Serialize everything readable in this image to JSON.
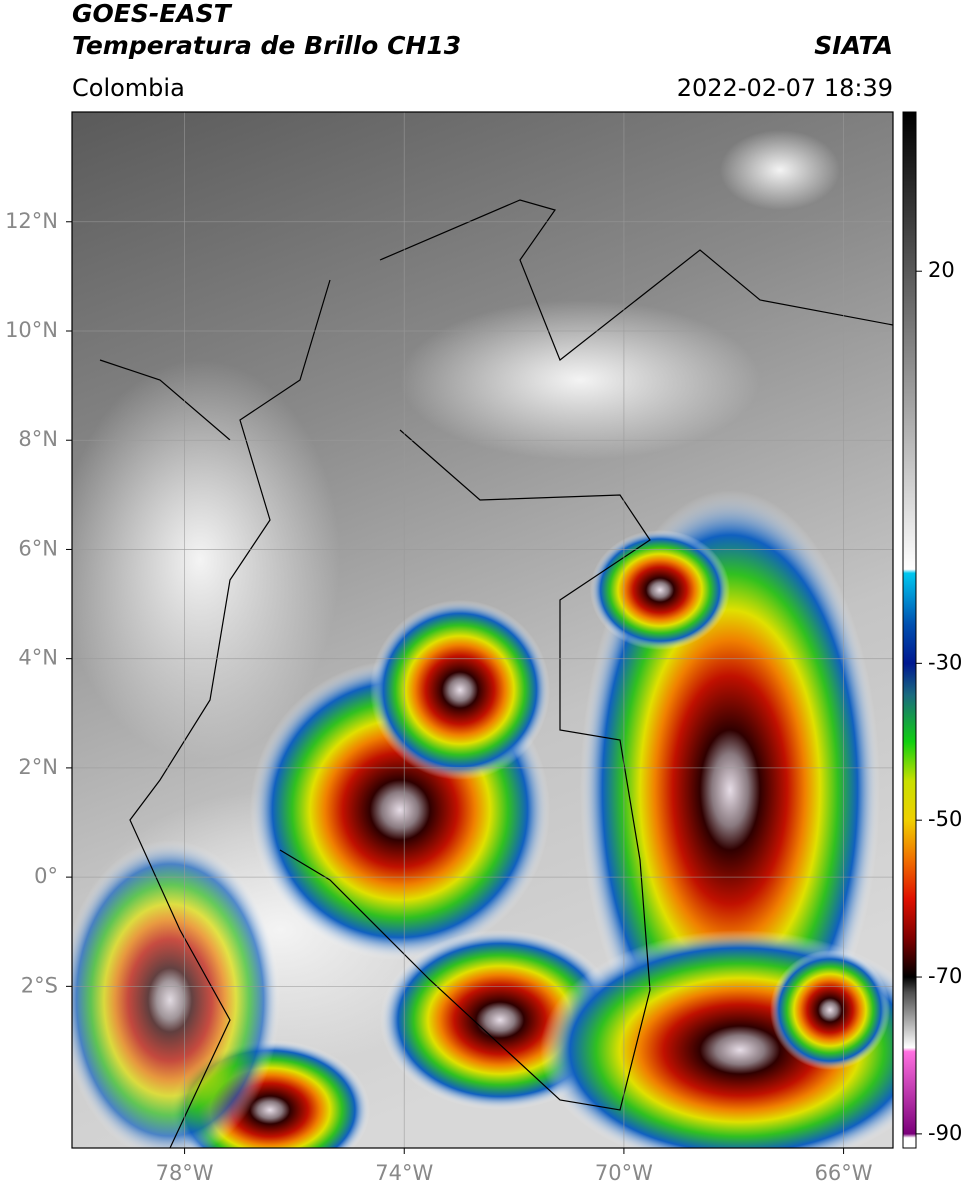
{
  "header": {
    "title": "GOES-EAST",
    "subtitle": "Temperatura de Brillo CH13",
    "source": "SIATA",
    "region": "Colombia",
    "datetime": "2022-02-07 18:39"
  },
  "map": {
    "xlim": [
      -80.05,
      -65.1
    ],
    "ylim": [
      -4.96,
      14.01
    ],
    "grid": true,
    "grid_color": "#9a9a9a",
    "xticks": [
      {
        "value": -78,
        "label": "78°W"
      },
      {
        "value": -74,
        "label": "74°W"
      },
      {
        "value": -70,
        "label": "70°W"
      },
      {
        "value": -66,
        "label": "66°W"
      }
    ],
    "yticks": [
      {
        "value": 12,
        "label": "12°N"
      },
      {
        "value": 10,
        "label": "10°N"
      },
      {
        "value": 8,
        "label": "8°N"
      },
      {
        "value": 6,
        "label": "6°N"
      },
      {
        "value": 4,
        "label": "4°N"
      },
      {
        "value": 2,
        "label": "2°N"
      },
      {
        "value": 0,
        "label": "0°"
      },
      {
        "value": -2,
        "label": "2°S"
      }
    ]
  },
  "colorbar": {
    "vlim": [
      40.3,
      -91.8
    ],
    "ticks": [
      20,
      -30,
      -50,
      -70,
      -90
    ],
    "colormap": [
      {
        "value": 40.3,
        "color": "#000000"
      },
      {
        "value": -18,
        "color": "#ffffff"
      },
      {
        "value": -18.5,
        "color": "#00c8f0"
      },
      {
        "value": -25,
        "color": "#0050b0"
      },
      {
        "value": -30,
        "color": "#001890"
      },
      {
        "value": -34,
        "color": "#1a6a80"
      },
      {
        "value": -40,
        "color": "#10d010"
      },
      {
        "value": -45,
        "color": "#c8e000"
      },
      {
        "value": -50,
        "color": "#f0d000"
      },
      {
        "value": -55,
        "color": "#f07000"
      },
      {
        "value": -60,
        "color": "#e01000"
      },
      {
        "value": -65,
        "color": "#800000"
      },
      {
        "value": -70,
        "color": "#000000"
      },
      {
        "value": -72,
        "color": "#505050"
      },
      {
        "value": -79,
        "color": "#ffffff"
      },
      {
        "value": -79.5,
        "color": "#ff70e0"
      },
      {
        "value": -90,
        "color": "#7a007a"
      },
      {
        "value": -90.5,
        "color": "#ffffff"
      },
      {
        "value": -91.8,
        "color": "#ffffff"
      }
    ]
  }
}
